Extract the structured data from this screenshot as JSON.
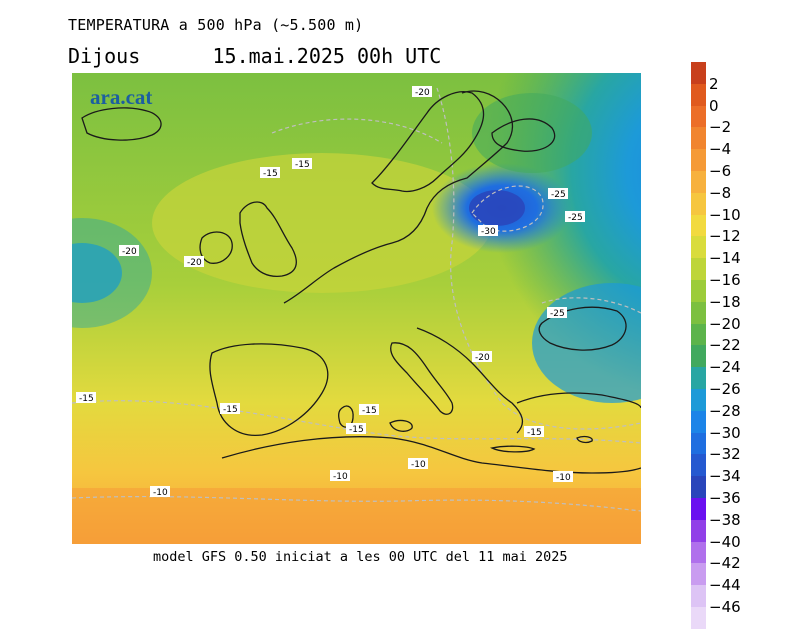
{
  "header": {
    "title": "TEMPERATURA a 500 hPa (~5.500 m)",
    "subtitle": "Dijous      15.mai.2025 00h UTC"
  },
  "footer": {
    "text": "model GFS 0.50 iniciat a les 00 UTC del 11 mai 2025"
  },
  "map": {
    "logo": "ara.cat",
    "contour_labels": [
      "-20",
      "-15",
      "-15",
      "-20",
      "-20",
      "-25",
      "-25",
      "-30",
      "-25",
      "-20",
      "-15",
      "-15",
      "-15",
      "-15",
      "-10",
      "-10",
      "-10",
      "-10",
      "-15"
    ]
  },
  "colorbar": {
    "ticks": [
      "2",
      "0",
      "−2",
      "−4",
      "−6",
      "−8",
      "−10",
      "−12",
      "−14",
      "−16",
      "−18",
      "−20",
      "−22",
      "−24",
      "−26",
      "−28",
      "−30",
      "−32",
      "−34",
      "−36",
      "−38",
      "−40",
      "−42",
      "−44",
      "−46"
    ],
    "colors": [
      "#c8401c",
      "#e05a1e",
      "#ec6e28",
      "#f1852f",
      "#f59a37",
      "#f7b13e",
      "#f6c63f",
      "#f2da3f",
      "#d9dc3c",
      "#bed539",
      "#9ccc3a",
      "#7cc040",
      "#5cb44b",
      "#41a95e",
      "#28a6a3",
      "#1d9ad8",
      "#1c84e8",
      "#1f6ee0",
      "#2559d0",
      "#2945bb",
      "#6a10f0",
      "#9140e8",
      "#b070ec",
      "#c99cf0",
      "#ddc4f5",
      "#ead9f8"
    ]
  }
}
